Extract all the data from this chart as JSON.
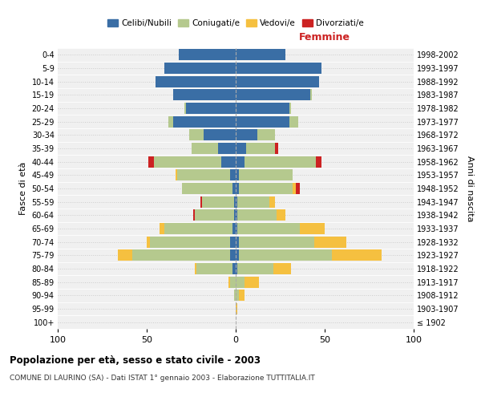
{
  "age_groups": [
    "100+",
    "95-99",
    "90-94",
    "85-89",
    "80-84",
    "75-79",
    "70-74",
    "65-69",
    "60-64",
    "55-59",
    "50-54",
    "45-49",
    "40-44",
    "35-39",
    "30-34",
    "25-29",
    "20-24",
    "15-19",
    "10-14",
    "5-9",
    "0-4"
  ],
  "birth_years": [
    "≤ 1902",
    "1903-1907",
    "1908-1912",
    "1913-1917",
    "1918-1922",
    "1923-1927",
    "1928-1932",
    "1933-1937",
    "1938-1942",
    "1943-1947",
    "1948-1952",
    "1953-1957",
    "1958-1962",
    "1963-1967",
    "1968-1972",
    "1973-1977",
    "1978-1982",
    "1983-1987",
    "1988-1992",
    "1993-1997",
    "1998-2002"
  ],
  "colors": {
    "celibi": "#3a6ea5",
    "coniugati": "#b5c98e",
    "vedovi": "#f5c040",
    "divorziati": "#cc2222"
  },
  "male": {
    "celibi": [
      0,
      0,
      0,
      0,
      2,
      3,
      3,
      2,
      1,
      1,
      2,
      3,
      8,
      10,
      18,
      35,
      28,
      35,
      45,
      40,
      32
    ],
    "coniugati": [
      0,
      0,
      1,
      3,
      20,
      55,
      45,
      38,
      22,
      18,
      28,
      30,
      38,
      15,
      8,
      3,
      1,
      0,
      0,
      0,
      0
    ],
    "vedovi": [
      0,
      0,
      0,
      1,
      1,
      8,
      2,
      3,
      0,
      0,
      0,
      1,
      0,
      0,
      0,
      0,
      0,
      0,
      0,
      0,
      0
    ],
    "divorziati": [
      0,
      0,
      0,
      0,
      0,
      0,
      0,
      0,
      1,
      1,
      0,
      0,
      3,
      0,
      0,
      0,
      0,
      0,
      0,
      0,
      0
    ]
  },
  "female": {
    "nubili": [
      0,
      0,
      0,
      0,
      1,
      2,
      2,
      1,
      1,
      1,
      2,
      2,
      5,
      6,
      12,
      30,
      30,
      42,
      47,
      48,
      28
    ],
    "coniugate": [
      0,
      0,
      2,
      5,
      20,
      52,
      42,
      35,
      22,
      18,
      30,
      30,
      40,
      16,
      10,
      5,
      1,
      1,
      0,
      0,
      0
    ],
    "vedove": [
      0,
      1,
      3,
      8,
      10,
      28,
      18,
      14,
      5,
      3,
      2,
      0,
      0,
      0,
      0,
      0,
      0,
      0,
      0,
      0,
      0
    ],
    "divorziate": [
      0,
      0,
      0,
      0,
      0,
      0,
      0,
      0,
      0,
      0,
      2,
      0,
      3,
      2,
      0,
      0,
      0,
      0,
      0,
      0,
      0
    ]
  },
  "xlim": 100,
  "title": "Popolazione per età, sesso e stato civile - 2003",
  "subtitle": "COMUNE DI LAURINO (SA) - Dati ISTAT 1° gennaio 2003 - Elaborazione TUTTITALIA.IT",
  "ylabel": "Fasce di età",
  "ylabel_right": "Anni di nascita",
  "xlabel_right": "Femmine",
  "bg_color": "#f0f0f0",
  "bar_height": 0.85
}
